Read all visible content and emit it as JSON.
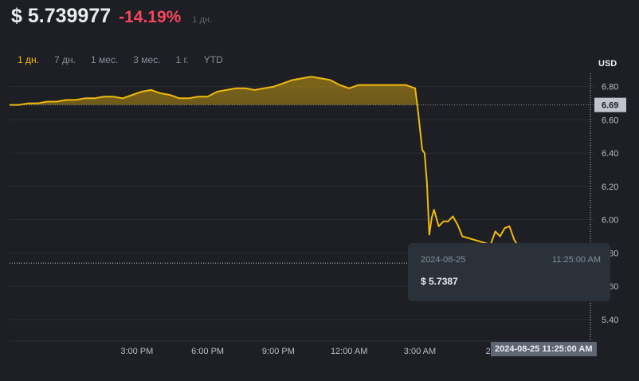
{
  "header": {
    "price": "$ 5.739977",
    "change": "-14.19%",
    "period_label": "1 дн."
  },
  "ranges": [
    "1 дн.",
    "7 дн.",
    "1 мес.",
    "3 мес.",
    "1 г.",
    "YTD"
  ],
  "active_range": "1 дн.",
  "currency_label": "USD",
  "tooltip": {
    "date": "2024-08-25",
    "time": "11:25:00 AM",
    "price": "$ 5.7387"
  },
  "cursor_time_label": "2024-08-25 11:25:00 AM",
  "colors": {
    "line": "#f0b90b",
    "negative": "#f6465d",
    "background": "#1e1f24",
    "grid": "#2b2f36"
  },
  "chart_data": {
    "type": "line",
    "y_ticks": [
      5.4,
      5.6,
      5.8,
      6.0,
      6.2,
      6.4,
      6.6,
      6.8
    ],
    "y_tick_labels": [
      "5.40",
      "5.60",
      "5.80",
      "6.00",
      "6.20",
      "6.40",
      "6.60",
      "6.80"
    ],
    "ylim": [
      5.27,
      6.88
    ],
    "x_ticks": [
      {
        "t": 0.25,
        "label": "3:00 PM"
      },
      {
        "t": 0.4,
        "label": "6:00 PM"
      },
      {
        "t": 0.55,
        "label": "9:00 PM"
      },
      {
        "t": 0.7,
        "label": "12:00 AM"
      },
      {
        "t": 0.85,
        "label": "3:00 AM"
      },
      {
        "t": 1.0,
        "label": "25"
      }
    ],
    "xlim": [
      -0.02,
      1.22
    ],
    "reference_line": {
      "value": 6.69,
      "label": "6.69"
    },
    "cursor": {
      "t": 1.11,
      "value": 5.7387
    },
    "series": [
      {
        "t": [
          -0.02,
          0.0,
          0.02,
          0.04,
          0.06,
          0.08,
          0.1,
          0.12,
          0.14,
          0.16,
          0.18,
          0.2,
          0.22,
          0.24,
          0.26,
          0.28,
          0.3,
          0.32,
          0.34,
          0.36,
          0.38,
          0.4,
          0.42,
          0.44,
          0.46,
          0.48,
          0.5,
          0.52,
          0.54,
          0.56,
          0.58,
          0.6,
          0.62,
          0.64,
          0.66,
          0.68,
          0.7,
          0.72,
          0.74,
          0.76,
          0.78,
          0.8,
          0.82,
          0.84,
          0.845,
          0.855,
          0.86,
          0.865,
          0.87,
          0.875,
          0.88,
          0.89,
          0.9,
          0.91,
          0.92,
          0.93,
          0.94,
          1.0,
          1.01,
          1.02,
          1.03,
          1.04,
          1.05,
          1.07
        ],
        "values": [
          6.69,
          6.69,
          6.7,
          6.7,
          6.71,
          6.71,
          6.72,
          6.72,
          6.73,
          6.73,
          6.74,
          6.74,
          6.73,
          6.75,
          6.77,
          6.78,
          6.76,
          6.75,
          6.73,
          6.73,
          6.74,
          6.74,
          6.77,
          6.78,
          6.79,
          6.79,
          6.78,
          6.79,
          6.8,
          6.82,
          6.84,
          6.85,
          6.86,
          6.85,
          6.84,
          6.81,
          6.79,
          6.81,
          6.81,
          6.81,
          6.81,
          6.81,
          6.81,
          6.79,
          6.68,
          6.42,
          6.4,
          6.22,
          5.91,
          6.01,
          6.06,
          5.96,
          5.99,
          5.99,
          6.02,
          5.97,
          5.9,
          5.85,
          5.93,
          5.9,
          5.95,
          5.96,
          5.88,
          5.79
        ]
      }
    ]
  }
}
